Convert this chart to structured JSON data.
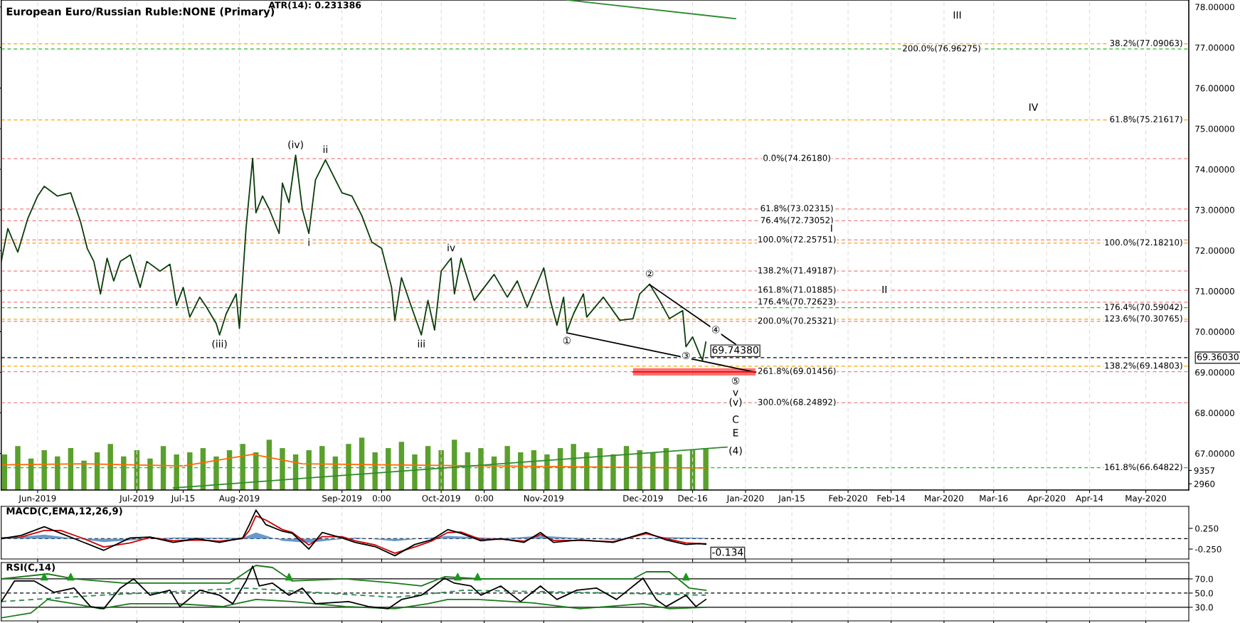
{
  "chart_data": [
    {
      "type": "line",
      "title": "European Euro/Russian Ruble:NONE (Primary)",
      "grid": "x",
      "xlim": [
        "2019-05-21",
        "2020-05-14"
      ],
      "xticks": [
        {
          "value": "2019-06-01",
          "label": "Jun-2019"
        },
        {
          "value": "2019-07-01",
          "label": "Jul-2019"
        },
        {
          "value": "2019-07-15",
          "label": "Jul-15"
        },
        {
          "value": "2019-08-01",
          "label": "Aug-2019"
        },
        {
          "value": "2019-09-01",
          "label": "Sep-2019"
        },
        {
          "value": "2019-09-13",
          "label": "0:00"
        },
        {
          "value": "2019-10-01",
          "label": "Oct-2019"
        },
        {
          "value": "2019-10-14",
          "label": "0:00"
        },
        {
          "value": "2019-11-01",
          "label": "Nov-2019"
        },
        {
          "value": "2019-12-01",
          "label": "Dec-2019"
        },
        {
          "value": "2019-12-16",
          "label": "Dec-16"
        },
        {
          "value": "2020-01-01",
          "label": "Jan-2020"
        },
        {
          "value": "2020-01-15",
          "label": "Jan-15"
        },
        {
          "value": "2020-02-01",
          "label": "Feb-2020"
        },
        {
          "value": "2020-02-14",
          "label": "Feb-14"
        },
        {
          "value": "2020-03-01",
          "label": "Mar-2020"
        },
        {
          "value": "2020-03-16",
          "label": "Mar-16"
        },
        {
          "value": "2020-04-01",
          "label": "Apr-2020"
        },
        {
          "value": "2020-04-14",
          "label": "Apr-14"
        },
        {
          "value": "2020-05-01",
          "label": "May-2020"
        }
      ],
      "ylim": [
        66.1,
        78.17
      ],
      "yticks": [
        {
          "value": 67,
          "label": "67.00000"
        },
        {
          "value": 68,
          "label": "68.00000"
        },
        {
          "value": 69,
          "label": "69.00000"
        },
        {
          "value": 70,
          "label": "70.00000"
        },
        {
          "value": 71,
          "label": "71.00000"
        },
        {
          "value": 72,
          "label": "72.00000"
        },
        {
          "value": 73,
          "label": "73.00000"
        },
        {
          "value": 74,
          "label": "74.00000"
        },
        {
          "value": 75,
          "label": "75.00000"
        },
        {
          "value": 76,
          "label": "76.00000"
        },
        {
          "value": 77,
          "label": "77.00000"
        },
        {
          "value": 78,
          "label": "78.00000"
        }
      ],
      "y2lim": [
        0,
        234000
      ],
      "y2ticks": [
        2960,
        9357
      ],
      "series": [
        {
          "type": "bar",
          "axis": "y2",
          "color": "#5aa02c",
          "x": [
            "2019-05-22",
            "2019-05-26",
            "2019-05-30",
            "2019-06-03",
            "2019-06-07",
            "2019-06-11",
            "2019-06-15",
            "2019-06-19",
            "2019-06-23",
            "2019-06-27",
            "2019-07-01",
            "2019-07-05",
            "2019-07-09",
            "2019-07-13",
            "2019-07-17",
            "2019-07-21",
            "2019-07-25",
            "2019-07-29",
            "2019-08-02",
            "2019-08-06",
            "2019-08-10",
            "2019-08-14",
            "2019-08-18",
            "2019-08-22",
            "2019-08-26",
            "2019-08-30",
            "2019-09-03",
            "2019-09-07",
            "2019-09-11",
            "2019-09-15",
            "2019-09-19",
            "2019-09-23",
            "2019-09-27",
            "2019-10-01",
            "2019-10-05",
            "2019-10-09",
            "2019-10-13",
            "2019-10-17",
            "2019-10-21",
            "2019-10-25",
            "2019-10-29",
            "2019-11-02",
            "2019-11-06",
            "2019-11-10",
            "2019-11-14",
            "2019-11-18",
            "2019-11-22",
            "2019-11-26",
            "2019-11-30",
            "2019-12-04",
            "2019-12-08",
            "2019-12-12",
            "2019-12-16",
            "2019-12-20"
          ],
          "values": [
            17000,
            21000,
            15000,
            19000,
            16000,
            20000,
            14000,
            18000,
            22000,
            16000,
            19000,
            15000,
            21000,
            17000,
            18000,
            20000,
            16000,
            19000,
            22000,
            18000,
            24000,
            20000,
            17000,
            19000,
            21000,
            16000,
            22000,
            25000,
            18000,
            20000,
            23000,
            17000,
            21000,
            19000,
            24000,
            18000,
            20000,
            16000,
            21000,
            18000,
            19000,
            17000,
            20000,
            22000,
            18000,
            20000,
            17000,
            21000,
            19000,
            18000,
            20000,
            17000,
            19000,
            20000
          ]
        },
        {
          "axis": "y2",
          "color": "#ff6a00",
          "x": [
            "2019-05-21",
            "2019-06-15",
            "2019-07-15",
            "2019-08-05",
            "2019-08-20",
            "2019-09-15",
            "2019-10-15",
            "2019-11-15",
            "2019-12-20"
          ],
          "values": [
            12000,
            12500,
            11500,
            17000,
            12500,
            12000,
            11500,
            11000,
            10500
          ]
        },
        {
          "color": "#0b3d0b",
          "x": [
            "2019-05-21",
            "2019-05-23",
            "2019-05-26",
            "2019-05-29",
            "2019-06-01",
            "2019-06-03",
            "2019-06-07",
            "2019-06-11",
            "2019-06-14",
            "2019-06-16",
            "2019-06-18",
            "2019-06-20",
            "2019-06-22",
            "2019-06-24",
            "2019-06-26",
            "2019-06-29",
            "2019-07-02",
            "2019-07-04",
            "2019-07-08",
            "2019-07-11",
            "2019-07-13",
            "2019-07-15",
            "2019-07-17",
            "2019-07-20",
            "2019-07-22",
            "2019-07-25",
            "2019-07-26",
            "2019-07-28",
            "2019-07-31",
            "2019-08-01",
            "2019-08-02",
            "2019-08-03",
            "2019-08-05",
            "2019-08-06",
            "2019-08-08",
            "2019-08-10",
            "2019-08-13",
            "2019-08-14",
            "2019-08-16",
            "2019-08-18",
            "2019-08-20",
            "2019-08-22",
            "2019-08-24",
            "2019-08-27",
            "2019-09-01",
            "2019-09-04",
            "2019-09-07",
            "2019-09-10",
            "2019-09-13",
            "2019-09-16",
            "2019-09-17",
            "2019-09-19",
            "2019-09-22",
            "2019-09-25",
            "2019-09-27",
            "2019-09-29",
            "2019-10-01",
            "2019-10-04",
            "2019-10-05",
            "2019-10-07",
            "2019-10-11",
            "2019-10-17",
            "2019-10-21",
            "2019-10-24",
            "2019-10-27",
            "2019-11-01",
            "2019-11-03",
            "2019-11-05",
            "2019-11-07",
            "2019-11-08",
            "2019-11-10",
            "2019-11-13",
            "2019-11-14",
            "2019-11-19",
            "2019-11-24",
            "2019-11-28",
            "2019-11-30",
            "2019-12-03",
            "2019-12-06",
            "2019-12-09",
            "2019-12-13",
            "2019-12-14",
            "2019-12-16",
            "2019-12-18",
            "2019-12-19",
            "2019-12-20"
          ],
          "values": [
            71.73,
            72.54,
            71.96,
            72.78,
            73.34,
            73.58,
            73.34,
            73.42,
            72.7,
            72.05,
            71.73,
            70.93,
            71.81,
            71.25,
            71.73,
            71.89,
            71.09,
            71.73,
            71.49,
            71.66,
            70.65,
            71.09,
            70.36,
            70.85,
            70.61,
            70.2,
            69.92,
            70.44,
            70.93,
            70.08,
            71.33,
            72.54,
            74.27,
            72.93,
            73.34,
            73.02,
            72.42,
            73.66,
            73.18,
            74.35,
            73.02,
            72.42,
            73.74,
            74.23,
            73.42,
            73.34,
            72.86,
            72.21,
            72.05,
            71.09,
            70.28,
            71.33,
            70.61,
            69.92,
            70.77,
            70.04,
            71.49,
            71.81,
            70.93,
            71.81,
            70.77,
            71.41,
            70.85,
            71.25,
            70.61,
            71.57,
            70.77,
            70.16,
            70.85,
            70.0,
            70.44,
            70.93,
            70.36,
            70.85,
            70.28,
            70.32,
            70.93,
            71.17,
            70.77,
            70.32,
            70.52,
            69.63,
            69.87,
            69.47,
            69.3,
            69.7438
          ]
        },
        {
          "color": "#000000",
          "x": [
            "2019-11-08",
            "2020-01-04"
          ],
          "values": [
            69.97,
            69.0
          ]
        },
        {
          "color": "#000000",
          "x": [
            "2019-12-03",
            "2019-12-29"
          ],
          "values": [
            71.16,
            69.69
          ]
        },
        {
          "color": "#2e8b2e",
          "x": [
            "2019-11-08",
            "2019-12-29"
          ],
          "values": [
            78.17,
            77.71
          ]
        },
        {
          "color": "#2e8b2e",
          "x": [
            "2019-07-12",
            "2019-12-27"
          ],
          "values": [
            66.15,
            67.16
          ]
        },
        {
          "color": "#ff0000",
          "x": [
            "2019-11-28",
            "2020-01-04"
          ],
          "values": [
            69.01,
            69.01
          ],
          "lower": [
            68.92,
            68.92
          ],
          "upper": [
            69.1,
            69.1
          ]
        }
      ],
      "ref_lines": [
        {
          "axis": "y",
          "value": 74.2618,
          "label": "0.0%(74.26180)",
          "color": "#f08080",
          "line_style": "dashed"
        },
        {
          "axis": "y",
          "value": 73.02315,
          "label": "61.8%(73.02315)",
          "color": "#f08080",
          "line_style": "dashed"
        },
        {
          "axis": "y",
          "value": 72.73052,
          "label": "76.4%(72.73052)",
          "color": "#f08080",
          "line_style": "dashed"
        },
        {
          "axis": "y",
          "value": 72.25751,
          "label": "100.0%(72.25751)",
          "color": "#f08080",
          "line_style": "dashed"
        },
        {
          "axis": "y",
          "value": 71.49187,
          "label": "138.2%(71.49187)",
          "color": "#f08080",
          "line_style": "dashed"
        },
        {
          "axis": "y",
          "value": 71.01885,
          "label": "161.8%(71.01885)",
          "color": "#f08080",
          "line_style": "dashed"
        },
        {
          "axis": "y",
          "value": 70.72623,
          "label": "176.4%(70.72623)",
          "color": "#f08080",
          "line_style": "dashed"
        },
        {
          "axis": "y",
          "value": 70.25321,
          "label": "200.0%(70.25321)",
          "color": "#f08080",
          "line_style": "dashed"
        },
        {
          "axis": "y",
          "value": 69.01456,
          "label": "261.8%(69.01456)",
          "color": "#f08080",
          "line_style": "dashed"
        },
        {
          "axis": "y",
          "value": 68.24892,
          "label": "300.0%(68.24892)",
          "color": "#f08080",
          "line_style": "dashed"
        },
        {
          "axis": "y",
          "value": 77.09063,
          "label": "38.2%(77.09063)",
          "color": "#ffa500",
          "line_style": "dashed"
        },
        {
          "axis": "y",
          "value": 75.21617,
          "label": "61.8%(75.21617)",
          "color": "#ffa500",
          "line_style": "dashed"
        },
        {
          "axis": "y",
          "value": 72.1821,
          "label": "100.0%(72.18210)",
          "color": "#ffa500",
          "line_style": "dashed"
        },
        {
          "axis": "y",
          "value": 70.30765,
          "label": "123.6%(70.30765)",
          "color": "#ffa500",
          "line_style": "dashed"
        },
        {
          "axis": "y",
          "value": 69.14803,
          "label": "138.2%(69.14803)",
          "color": "#ffa500",
          "line_style": "dashed"
        },
        {
          "axis": "y",
          "value": 76.96275,
          "label": "200.0%(76.96275)",
          "color": "#22bb22",
          "line_style": "dashed"
        },
        {
          "axis": "y",
          "value": 70.59042,
          "label": "176.4%(70.59042)",
          "color": "#22bb22",
          "line_style": "dashed"
        },
        {
          "axis": "y",
          "value": 66.64822,
          "label": "161.8%(66.64822)",
          "color": "#22bb22",
          "line_style": "dashed"
        },
        {
          "axis": "y",
          "value": 69.3603,
          "label": "69.36030",
          "color": "#000000",
          "line_style": "dashed"
        }
      ],
      "annotations": [
        "ATR(14): 0.231386",
        {
          "text": "69.74380",
          "x": "2019-12-20",
          "y": 69.7438
        },
        {
          "text": "(iii)",
          "x": "2019-07-26",
          "y": 69.92
        },
        {
          "text": "(iv)",
          "x": "2019-08-18",
          "y": 74.35
        },
        {
          "text": "ii",
          "x": "2019-08-27",
          "y": 74.23
        },
        {
          "text": "i",
          "x": "2019-08-22",
          "y": 72.42
        },
        {
          "text": "iii",
          "x": "2019-09-25",
          "y": 69.92
        },
        {
          "text": "iv",
          "x": "2019-10-04",
          "y": 71.81
        },
        {
          "text": "①",
          "x": "2019-11-08",
          "y": 70.0
        },
        {
          "text": "②",
          "x": "2019-12-03",
          "y": 71.17
        },
        {
          "text": "③",
          "x": "2019-12-14",
          "y": 69.63
        },
        {
          "text": "④",
          "x": "2019-12-23",
          "y": 70.03
        },
        {
          "text": "⑤",
          "x": "2019-12-29",
          "y": 68.77
        },
        {
          "text": "v",
          "x": "2019-12-29",
          "y": 68.49
        },
        {
          "text": "(v)",
          "x": "2019-12-29",
          "y": 68.24892
        },
        {
          "text": "C",
          "x": "2019-12-29",
          "y": 67.82
        },
        {
          "text": "E",
          "x": "2019-12-29",
          "y": 67.49
        },
        {
          "text": "(4)",
          "x": "2019-12-29",
          "y": 67.05
        },
        {
          "text": "I",
          "x": "2020-01-27",
          "y": 72.53
        },
        {
          "text": "II",
          "x": "2020-02-12",
          "y": 71.01885
        },
        {
          "text": "III",
          "x": "2020-03-05",
          "y": 77.78
        },
        {
          "text": "IV",
          "x": "2020-03-28",
          "y": 75.51
        }
      ]
    },
    {
      "type": "line",
      "title": "MACD(C,EMA,12,26,9)",
      "grid": "x",
      "tick_labels": "y",
      "xlim": [
        "2019-05-21",
        "2020-05-14"
      ],
      "xticks": [
        {
          "value": "2019-06-01",
          "label": null
        },
        {
          "value": "2019-07-01",
          "label": null
        },
        {
          "value": "2019-07-15",
          "label": null
        },
        {
          "value": "2019-08-01",
          "label": null
        },
        {
          "value": "2019-09-01",
          "label": null
        },
        {
          "value": "2019-09-13",
          "label": null
        },
        {
          "value": "2019-10-01",
          "label": null
        },
        {
          "value": "2019-10-14",
          "label": null
        },
        {
          "value": "2019-11-01",
          "label": null
        },
        {
          "value": "2019-12-01",
          "label": null
        },
        {
          "value": "2019-12-16",
          "label": null
        },
        {
          "value": "2020-01-01",
          "label": null
        },
        {
          "value": "2020-01-15",
          "label": null
        },
        {
          "value": "2020-02-01",
          "label": null
        },
        {
          "value": "2020-02-14",
          "label": null
        },
        {
          "value": "2020-03-01",
          "label": null
        },
        {
          "value": "2020-03-16",
          "label": null
        },
        {
          "value": "2020-04-01",
          "label": null
        },
        {
          "value": "2020-04-14",
          "label": null
        },
        {
          "value": "2020-05-01",
          "label": null
        }
      ],
      "ylim": [
        -0.49,
        0.78
      ],
      "yticks": [
        {
          "value": 0.25,
          "label": "0.250"
        },
        {
          "value": -0.25,
          "label": "-0.250"
        }
      ],
      "x": [
        "2019-05-21",
        "2019-05-27",
        "2019-06-03",
        "2019-06-08",
        "2019-06-15",
        "2019-06-21",
        "2019-06-29",
        "2019-07-05",
        "2019-07-12",
        "2019-07-19",
        "2019-07-26",
        "2019-08-02",
        "2019-08-04",
        "2019-08-06",
        "2019-08-09",
        "2019-08-14",
        "2019-08-17",
        "2019-08-22",
        "2019-08-26",
        "2019-09-01",
        "2019-09-05",
        "2019-09-11",
        "2019-09-17",
        "2019-09-23",
        "2019-09-28",
        "2019-10-03",
        "2019-10-07",
        "2019-10-13",
        "2019-10-19",
        "2019-10-26",
        "2019-10-31",
        "2019-11-04",
        "2019-11-12",
        "2019-11-22",
        "2019-12-02",
        "2019-12-08",
        "2019-12-14",
        "2019-12-18",
        "2019-12-20"
      ],
      "series": [
        {
          "type": "area",
          "color": "#6699cc",
          "x": [
            "2019-05-21",
            "2019-06-03",
            "2019-06-21",
            "2019-07-12",
            "2019-08-02",
            "2019-08-06",
            "2019-08-14",
            "2019-08-22",
            "2019-09-05",
            "2019-09-17",
            "2019-10-03",
            "2019-10-19",
            "2019-10-31",
            "2019-11-22",
            "2019-12-08",
            "2019-12-20"
          ],
          "values": [
            0,
            0.1,
            -0.08,
            0.03,
            0.02,
            0.15,
            -0.05,
            -0.1,
            0.03,
            -0.06,
            0.07,
            0.01,
            0.07,
            -0.03,
            0.04,
            0.02
          ]
        },
        {
          "color": "#cc0000",
          "values": [
            0.02,
            0.04,
            0.2,
            0.2,
            0.0,
            -0.2,
            -0.1,
            0.03,
            -0.05,
            -0.03,
            -0.06,
            0.0,
            0.2,
            0.55,
            0.45,
            0.22,
            0.15,
            -0.15,
            0.05,
            0.05,
            -0.05,
            -0.15,
            -0.35,
            -0.2,
            -0.06,
            0.15,
            0.16,
            -0.02,
            -0.01,
            -0.06,
            0.1,
            -0.04,
            -0.04,
            -0.07,
            0.12,
            0.0,
            -0.1,
            -0.12,
            -0.12
          ]
        },
        {
          "color": "#000000",
          "values": [
            0,
            0.08,
            0.29,
            0.13,
            -0.09,
            -0.28,
            0.02,
            0.04,
            -0.09,
            0,
            -0.09,
            0.02,
            0.34,
            0.69,
            0.34,
            0.18,
            0.13,
            -0.25,
            0.15,
            0.02,
            -0.09,
            -0.19,
            -0.41,
            -0.14,
            -0.03,
            0.22,
            0.13,
            -0.05,
            0,
            -0.09,
            0.15,
            -0.09,
            -0.03,
            -0.09,
            0.15,
            -0.03,
            -0.14,
            -0.12,
            -0.134
          ]
        }
      ],
      "ref_lines": [
        {
          "axis": "y",
          "value": 0,
          "color": "#000000",
          "line_style": "dashed"
        }
      ],
      "annotations": [
        {
          "text": "-0.134",
          "x": "2019-12-20",
          "y": -0.134
        }
      ]
    },
    {
      "type": "line",
      "title": "RSI(C,14)",
      "grid": "x",
      "tick_labels": "y",
      "xlim": [
        "2019-05-21",
        "2020-05-14"
      ],
      "xticks": [
        {
          "value": "2019-06-01",
          "label": null
        },
        {
          "value": "2019-07-01",
          "label": null
        },
        {
          "value": "2019-07-15",
          "label": null
        },
        {
          "value": "2019-08-01",
          "label": null
        },
        {
          "value": "2019-09-01",
          "label": null
        },
        {
          "value": "2019-09-13",
          "label": null
        },
        {
          "value": "2019-10-01",
          "label": null
        },
        {
          "value": "2019-10-14",
          "label": null
        },
        {
          "value": "2019-11-01",
          "label": null
        },
        {
          "value": "2019-12-01",
          "label": null
        },
        {
          "value": "2019-12-16",
          "label": null
        },
        {
          "value": "2020-01-01",
          "label": null
        },
        {
          "value": "2020-01-15",
          "label": null
        },
        {
          "value": "2020-02-01",
          "label": null
        },
        {
          "value": "2020-02-14",
          "label": null
        },
        {
          "value": "2020-03-01",
          "label": null
        },
        {
          "value": "2020-03-16",
          "label": null
        },
        {
          "value": "2020-04-01",
          "label": null
        },
        {
          "value": "2020-04-14",
          "label": null
        },
        {
          "value": "2020-05-01",
          "label": null
        }
      ],
      "ylim": [
        10.8,
        93
      ],
      "yticks": [
        {
          "value": 30,
          "label": "30.0"
        },
        {
          "value": 50,
          "label": "50.0"
        },
        {
          "value": 70,
          "label": "70.0"
        }
      ],
      "series": [
        {
          "color": "#2e8b57",
          "line_style": "dashed",
          "x": [
            "2019-05-21",
            "2019-06-20",
            "2019-08-03",
            "2019-09-17",
            "2019-10-08",
            "2019-11-12",
            "2019-12-20"
          ],
          "values": [
            38,
            47,
            57,
            44,
            54,
            51,
            47
          ]
        },
        {
          "color": "#1a7a1a",
          "x": [
            "2019-05-21",
            "2019-06-04",
            "2019-06-12",
            "2019-06-27",
            "2019-07-20",
            "2019-07-29",
            "2019-08-06",
            "2019-08-11",
            "2019-08-17",
            "2019-09-02",
            "2019-09-17",
            "2019-09-25",
            "2019-10-02",
            "2019-10-13",
            "2019-10-29",
            "2019-11-12",
            "2019-11-28",
            "2019-12-02",
            "2019-12-09",
            "2019-12-15",
            "2019-12-20"
          ],
          "values": [
            70,
            77,
            70,
            64,
            64,
            64,
            89,
            86,
            67,
            70,
            64,
            60,
            73,
            70,
            70,
            70,
            70,
            80,
            80,
            57,
            54
          ]
        },
        {
          "color": "#1a7a1a",
          "x": [
            "2019-05-21",
            "2019-05-30",
            "2019-06-04",
            "2019-06-12",
            "2019-06-20",
            "2019-06-29",
            "2019-07-13",
            "2019-07-27",
            "2019-08-06",
            "2019-08-17",
            "2019-09-02",
            "2019-09-17",
            "2019-09-27",
            "2019-10-03",
            "2019-10-12",
            "2019-10-29",
            "2019-11-12",
            "2019-12-01",
            "2019-12-09",
            "2019-12-20"
          ],
          "values": [
            15,
            22,
            41,
            35,
            28,
            35,
            35,
            31,
            41,
            38,
            31,
            28,
            35,
            41,
            41,
            36,
            28,
            35,
            28,
            30
          ]
        },
        {
          "color": "#000000",
          "x": [
            "2019-05-21",
            "2019-05-25",
            "2019-05-31",
            "2019-06-06",
            "2019-06-12",
            "2019-06-17",
            "2019-06-21",
            "2019-06-26",
            "2019-06-30",
            "2019-07-05",
            "2019-07-11",
            "2019-07-14",
            "2019-07-20",
            "2019-07-26",
            "2019-07-30",
            "2019-08-03",
            "2019-08-05",
            "2019-08-07",
            "2019-08-11",
            "2019-08-16",
            "2019-08-20",
            "2019-08-24",
            "2019-09-03",
            "2019-09-09",
            "2019-09-15",
            "2019-09-19",
            "2019-09-25",
            "2019-09-28",
            "2019-10-02",
            "2019-10-05",
            "2019-10-10",
            "2019-10-13",
            "2019-10-19",
            "2019-10-25",
            "2019-10-31",
            "2019-11-05",
            "2019-11-11",
            "2019-11-17",
            "2019-11-23",
            "2019-12-01",
            "2019-12-05",
            "2019-12-08",
            "2019-12-14",
            "2019-12-17",
            "2019-12-20"
          ],
          "values": [
            38,
            67,
            67,
            51,
            57,
            31,
            28,
            57,
            70,
            47,
            54,
            31,
            54,
            47,
            35,
            67,
            88,
            60,
            64,
            47,
            57,
            35,
            38,
            31,
            28,
            41,
            47,
            57,
            71,
            64,
            60,
            47,
            60,
            38,
            60,
            41,
            54,
            57,
            41,
            71,
            41,
            31,
            47,
            31,
            41
          ]
        },
        {
          "type": "scatter",
          "color": "#1a9a1a",
          "marker": "triangle",
          "x": [
            "2019-06-03",
            "2019-06-11",
            "2019-08-16",
            "2019-10-06",
            "2019-10-12",
            "2019-12-14"
          ],
          "values": [
            73,
            73,
            73,
            73,
            73,
            73
          ]
        }
      ],
      "ref_lines": [
        {
          "axis": "y",
          "value": 70,
          "color": "#000000",
          "line_style": "solid"
        },
        {
          "axis": "y",
          "value": 50,
          "color": "#000000",
          "line_style": "dashed"
        },
        {
          "axis": "y",
          "value": 30,
          "color": "#000000",
          "line_style": "solid"
        }
      ]
    }
  ]
}
